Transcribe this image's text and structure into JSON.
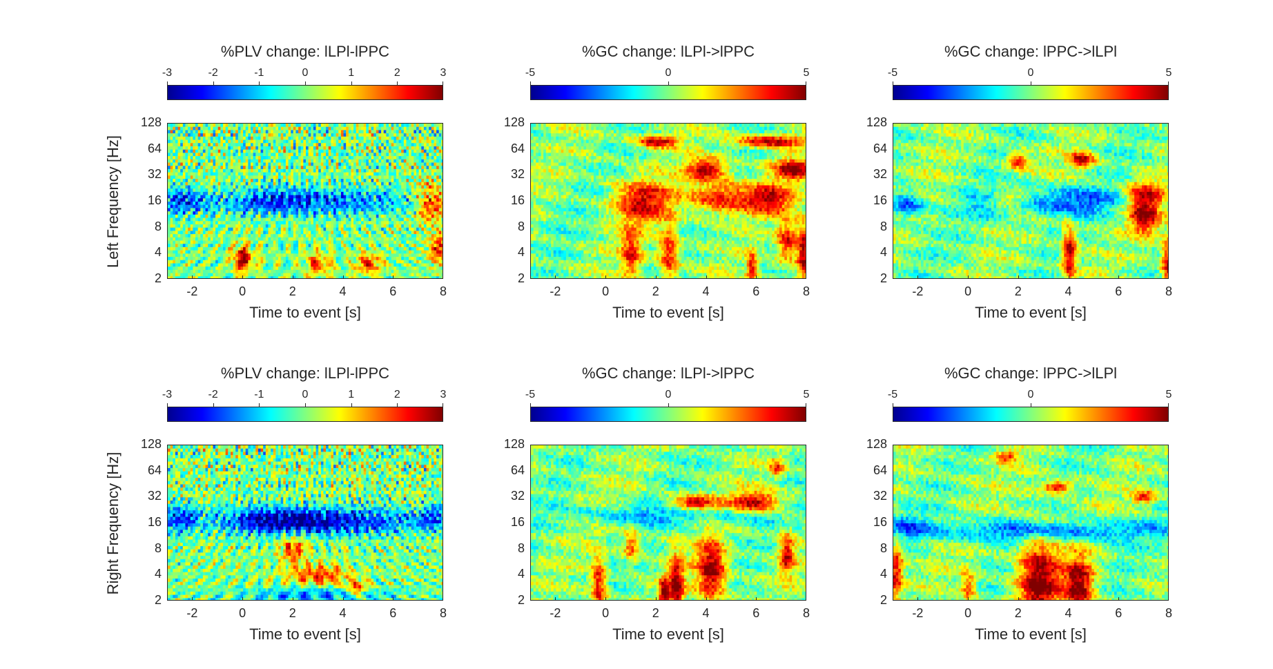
{
  "figure": {
    "xlabel": "Time to event [s]",
    "ylabels": [
      "Left Frequency [Hz]",
      "Right Frequency [Hz]"
    ]
  },
  "chart_data": [
    {
      "type": "heatmap",
      "title": "%PLV change: lLPl-lPPC",
      "clim": [
        -3,
        3
      ],
      "colorbar_ticks": [
        "-3",
        "-2",
        "-1",
        "0",
        "1",
        "2",
        "3"
      ],
      "xlabel": "Time to event [s]",
      "ylabel": "Left Frequency [Hz]",
      "xlim": [
        -3,
        8
      ],
      "x_ticks": [
        "-2",
        "0",
        "2",
        "4",
        "6",
        "8"
      ],
      "y_ticks": [
        "2",
        "4",
        "8",
        "16",
        "32",
        "64",
        "128"
      ],
      "y_scale": "log2",
      "highlights": [
        {
          "t": -2.5,
          "f": 16,
          "v": -1.8,
          "dt": 1.2,
          "df": 0.25
        },
        {
          "t": 1,
          "f": 16,
          "v": -1.5,
          "dt": 2,
          "df": 0.25
        },
        {
          "t": 4,
          "f": 16,
          "v": -1.4,
          "dt": 3,
          "df": 0.25
        },
        {
          "t": 0,
          "f": 3.5,
          "v": 2.8,
          "dt": 0.4,
          "df": 0.25
        },
        {
          "t": 7.5,
          "f": 16,
          "v": 2,
          "dt": 0.6,
          "df": 0.4
        },
        {
          "t": 5,
          "f": 3,
          "v": 2,
          "dt": 0.5,
          "df": 0.2
        },
        {
          "t": 3,
          "f": 3,
          "v": 1.8,
          "dt": 0.5,
          "df": 0.2
        },
        {
          "t": 7.8,
          "f": 4.5,
          "v": 2.2,
          "dt": 0.4,
          "df": 0.3
        }
      ],
      "noise": "plv"
    },
    {
      "type": "heatmap",
      "title": "%GC change: lLPl->lPPC",
      "clim": [
        -5,
        5
      ],
      "colorbar_ticks": [
        "-5",
        "0",
        "5"
      ],
      "xlabel": "Time to event [s]",
      "xlim": [
        -3,
        8
      ],
      "x_ticks": [
        "-2",
        "0",
        "2",
        "4",
        "6",
        "8"
      ],
      "y_ticks": [
        "2",
        "4",
        "8",
        "16",
        "32",
        "64",
        "128"
      ],
      "y_scale": "log2",
      "highlights": [
        {
          "t": 2,
          "f": 80,
          "v": 4.6,
          "dt": 0.8,
          "df": 0.12
        },
        {
          "t": 6.5,
          "f": 80,
          "v": 4.6,
          "dt": 1.4,
          "df": 0.12
        },
        {
          "t": 4,
          "f": 38,
          "v": 4.8,
          "dt": 0.8,
          "df": 0.2
        },
        {
          "t": 7.5,
          "f": 38,
          "v": 4.9,
          "dt": 0.8,
          "df": 0.2
        },
        {
          "t": 1.5,
          "f": 16,
          "v": 4,
          "dt": 1.2,
          "df": 0.4
        },
        {
          "t": 4.5,
          "f": 18,
          "v": 4,
          "dt": 1.2,
          "df": 0.3
        },
        {
          "t": 6.5,
          "f": 17,
          "v": 4,
          "dt": 1,
          "df": 0.3
        },
        {
          "t": 2.5,
          "f": 4,
          "v": 4,
          "dt": 0.4,
          "df": 0.5
        },
        {
          "t": 7.9,
          "f": 4,
          "v": 5,
          "dt": 0.3,
          "df": 0.6
        },
        {
          "t": 7.2,
          "f": 5.5,
          "v": 4,
          "dt": 0.4,
          "df": 0.4
        },
        {
          "t": 1,
          "f": 4,
          "v": 3.5,
          "dt": 0.4,
          "df": 0.5
        },
        {
          "t": 5.8,
          "f": 2.8,
          "v": 4,
          "dt": 0.2,
          "df": 0.3
        }
      ],
      "noise": "gc"
    },
    {
      "type": "heatmap",
      "title": "%GC change: lPPC->lLPl",
      "clim": [
        -5,
        5
      ],
      "colorbar_ticks": [
        "-5",
        "0",
        "5"
      ],
      "xlabel": "Time to event [s]",
      "xlim": [
        -3,
        8
      ],
      "x_ticks": [
        "-2",
        "0",
        "2",
        "4",
        "6",
        "8"
      ],
      "y_ticks": [
        "2",
        "4",
        "8",
        "16",
        "32",
        "64",
        "128"
      ],
      "y_scale": "log2",
      "highlights": [
        {
          "t": -2.5,
          "f": 15,
          "v": -3,
          "dt": 0.7,
          "df": 0.25
        },
        {
          "t": 4,
          "f": 16,
          "v": -2.8,
          "dt": 3,
          "df": 0.25
        },
        {
          "t": 1,
          "f": 14,
          "v": -1.8,
          "dt": 1,
          "df": 0.2
        },
        {
          "t": 7,
          "f": 18,
          "v": 4.5,
          "dt": 0.8,
          "df": 0.3
        },
        {
          "t": 7,
          "f": 10,
          "v": 4,
          "dt": 0.6,
          "df": 0.3
        },
        {
          "t": 4,
          "f": 4,
          "v": 5,
          "dt": 0.3,
          "df": 0.5
        },
        {
          "t": 8,
          "f": 3,
          "v": 5,
          "dt": 0.3,
          "df": 0.5
        },
        {
          "t": 2,
          "f": 48,
          "v": 4,
          "dt": 0.4,
          "df": 0.15
        },
        {
          "t": 4.5,
          "f": 48,
          "v": 4.5,
          "dt": 0.5,
          "df": 0.15
        },
        {
          "t": 1.5,
          "f": 16,
          "v": 3.5,
          "dt": 0.8,
          "df": 0.15
        }
      ],
      "noise": "gc"
    },
    {
      "type": "heatmap",
      "title": "%PLV change: lLPl-lPPC",
      "clim": [
        -3,
        3
      ],
      "colorbar_ticks": [
        "-3",
        "-2",
        "-1",
        "0",
        "1",
        "2",
        "3"
      ],
      "xlabel": "Time to event [s]",
      "ylabel": "Right Frequency [Hz]",
      "xlim": [
        -3,
        8
      ],
      "x_ticks": [
        "-2",
        "0",
        "2",
        "4",
        "6",
        "8"
      ],
      "y_ticks": [
        "2",
        "4",
        "8",
        "16",
        "32",
        "64",
        "128"
      ],
      "y_scale": "log2",
      "highlights": [
        {
          "t": -2.5,
          "f": 18,
          "v": -2,
          "dt": 0.8,
          "df": 0.25
        },
        {
          "t": 1,
          "f": 17,
          "v": -2.2,
          "dt": 2,
          "df": 0.25
        },
        {
          "t": 4,
          "f": 17,
          "v": -2.2,
          "dt": 3,
          "df": 0.25
        },
        {
          "t": 7.5,
          "f": 18,
          "v": -1.5,
          "dt": 0.6,
          "df": 0.25
        },
        {
          "t": 3,
          "f": 2.4,
          "v": -1.5,
          "dt": 3,
          "df": 0.15
        },
        {
          "t": 2,
          "f": 8,
          "v": 2,
          "dt": 0.5,
          "df": 0.25
        },
        {
          "t": 3,
          "f": 4,
          "v": 2,
          "dt": 1.2,
          "df": 0.2
        },
        {
          "t": 4.5,
          "f": 2.8,
          "v": 2,
          "dt": 0.5,
          "df": 0.15
        }
      ],
      "noise": "plv"
    },
    {
      "type": "heatmap",
      "title": "%GC change: lLPl->lPPC",
      "clim": [
        -5,
        5
      ],
      "colorbar_ticks": [
        "-5",
        "0",
        "5"
      ],
      "xlabel": "Time to event [s]",
      "xlim": [
        -3,
        8
      ],
      "x_ticks": [
        "-2",
        "0",
        "2",
        "4",
        "6",
        "8"
      ],
      "y_ticks": [
        "2",
        "4",
        "8",
        "16",
        "32",
        "64",
        "128"
      ],
      "y_scale": "log2",
      "highlights": [
        {
          "t": 2.5,
          "f": 20,
          "v": -2,
          "dt": 4,
          "df": 0.2
        },
        {
          "t": 6,
          "f": 28,
          "v": 4.8,
          "dt": 1,
          "df": 0.2
        },
        {
          "t": 3.5,
          "f": 27,
          "v": 4.5,
          "dt": 1,
          "df": 0.15
        },
        {
          "t": 4.2,
          "f": 4.5,
          "v": 5,
          "dt": 0.6,
          "df": 0.6
        },
        {
          "t": 2.8,
          "f": 3,
          "v": 4.8,
          "dt": 0.3,
          "df": 0.6
        },
        {
          "t": -0.3,
          "f": 3,
          "v": 4.2,
          "dt": 0.3,
          "df": 0.6
        },
        {
          "t": 7.2,
          "f": 7,
          "v": 4.3,
          "dt": 0.3,
          "df": 0.4
        },
        {
          "t": 1,
          "f": 9,
          "v": 3.5,
          "dt": 0.3,
          "df": 0.3
        },
        {
          "t": 2.3,
          "f": 2.5,
          "v": 4.8,
          "dt": 0.2,
          "df": 0.3
        },
        {
          "t": 6.8,
          "f": 70,
          "v": 3,
          "dt": 0.3,
          "df": 0.2
        }
      ],
      "noise": "gc"
    },
    {
      "type": "heatmap",
      "title": "%GC change: lPPC->lLPl",
      "clim": [
        -5,
        5
      ],
      "colorbar_ticks": [
        "-5",
        "0",
        "5"
      ],
      "xlabel": "Time to event [s]",
      "xlim": [
        -3,
        8
      ],
      "x_ticks": [
        "-2",
        "0",
        "2",
        "4",
        "6",
        "8"
      ],
      "y_ticks": [
        "2",
        "4",
        "8",
        "16",
        "32",
        "64",
        "128"
      ],
      "y_scale": "log2",
      "highlights": [
        {
          "t": 3,
          "f": 13,
          "v": -3,
          "dt": 5,
          "df": 0.2
        },
        {
          "t": -2.5,
          "f": 15,
          "v": -2,
          "dt": 0.8,
          "df": 0.2
        },
        {
          "t": 2.8,
          "f": 3.5,
          "v": 5,
          "dt": 0.8,
          "df": 0.9
        },
        {
          "t": 4.4,
          "f": 3,
          "v": 5,
          "dt": 0.6,
          "df": 0.6
        },
        {
          "t": -2.9,
          "f": 4.5,
          "v": 4.5,
          "dt": 0.3,
          "df": 0.5
        },
        {
          "t": 3.5,
          "f": 42,
          "v": 4.5,
          "dt": 0.6,
          "df": 0.12
        },
        {
          "t": 7,
          "f": 32,
          "v": 3.8,
          "dt": 0.5,
          "df": 0.12
        },
        {
          "t": 1.5,
          "f": 95,
          "v": 3.5,
          "dt": 0.5,
          "df": 0.1
        },
        {
          "t": 0,
          "f": 3,
          "v": 3,
          "dt": 0.3,
          "df": 0.3
        }
      ],
      "noise": "gc"
    }
  ]
}
